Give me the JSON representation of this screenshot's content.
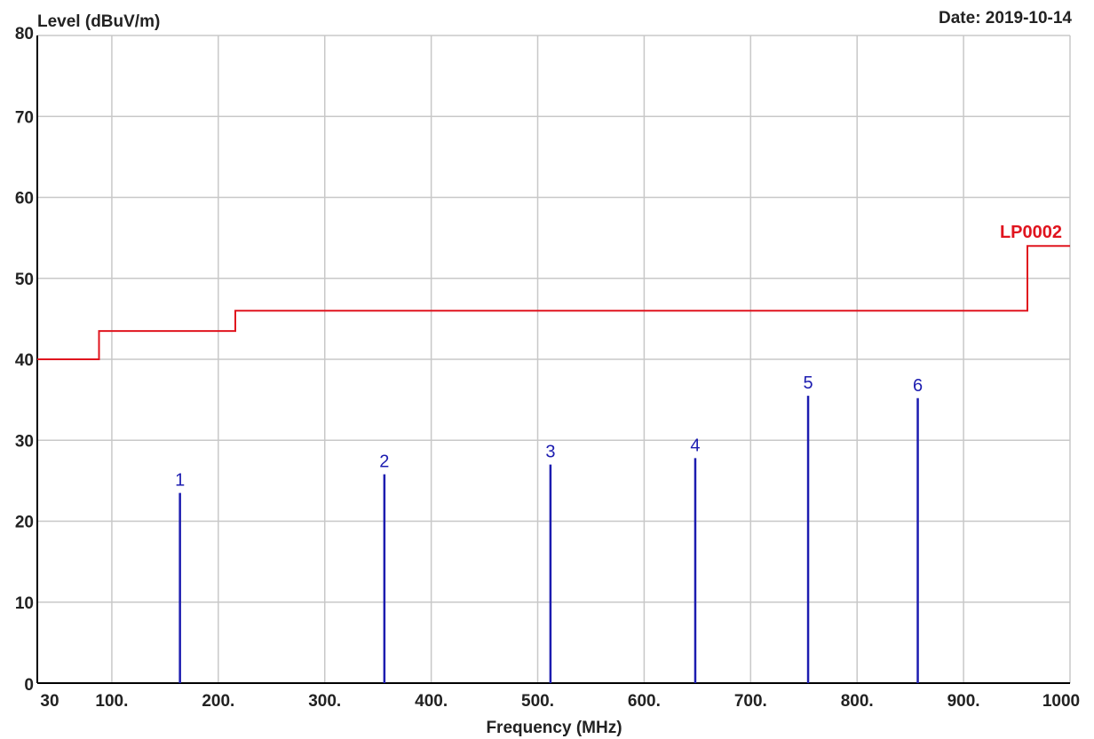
{
  "chart_data": {
    "type": "line",
    "ylabel": "Level (dBuV/m)",
    "xlabel": "Frequency (MHz)",
    "date": "Date: 2019-10-14",
    "xlim": [
      30,
      1000
    ],
    "ylim": [
      0,
      80
    ],
    "x_ticks": [
      {
        "value": 30,
        "label": "30"
      },
      {
        "value": 100,
        "label": "100."
      },
      {
        "value": 200,
        "label": "200."
      },
      {
        "value": 300,
        "label": "300."
      },
      {
        "value": 400,
        "label": "400."
      },
      {
        "value": 500,
        "label": "500."
      },
      {
        "value": 600,
        "label": "600."
      },
      {
        "value": 700,
        "label": "700."
      },
      {
        "value": 800,
        "label": "800."
      },
      {
        "value": 900,
        "label": "900."
      },
      {
        "value": 1000,
        "label": "1000"
      }
    ],
    "y_ticks": [
      {
        "value": 0,
        "label": "0"
      },
      {
        "value": 10,
        "label": "10"
      },
      {
        "value": 20,
        "label": "20"
      },
      {
        "value": 30,
        "label": "30"
      },
      {
        "value": 40,
        "label": "40"
      },
      {
        "value": 50,
        "label": "50"
      },
      {
        "value": 60,
        "label": "60"
      },
      {
        "value": 70,
        "label": "70"
      },
      {
        "value": 80,
        "label": "80"
      }
    ],
    "grid": true,
    "limit_line": {
      "name": "LP0002",
      "color": "#e0141e",
      "points": [
        [
          30,
          40
        ],
        [
          88,
          40
        ],
        [
          88,
          43.5
        ],
        [
          216,
          43.5
        ],
        [
          216,
          46
        ],
        [
          960,
          46
        ],
        [
          960,
          54
        ],
        [
          1000,
          54
        ]
      ]
    },
    "markers": {
      "color": "#1c1cb0",
      "items": [
        {
          "label": "1",
          "x": 164,
          "y": 23.5
        },
        {
          "label": "2",
          "x": 356,
          "y": 25.8
        },
        {
          "label": "3",
          "x": 512,
          "y": 27.0
        },
        {
          "label": "4",
          "x": 648,
          "y": 27.8
        },
        {
          "label": "5",
          "x": 754,
          "y": 35.5
        },
        {
          "label": "6",
          "x": 857,
          "y": 35.2
        }
      ]
    }
  }
}
